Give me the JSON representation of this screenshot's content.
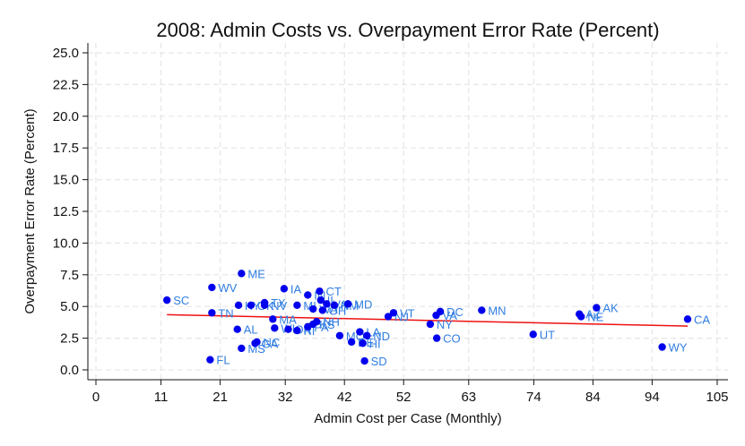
{
  "chart_data": {
    "type": "scatter",
    "title": "2008: Admin Costs vs. Overpayment Error Rate (Percent)",
    "xlabel": "Admin Cost per Case (Monthly)",
    "ylabel": "Overpayment Error Rate (Percent)",
    "xlim": [
      0,
      105
    ],
    "ylim": [
      0,
      25
    ],
    "x_ticks": [
      "0",
      "11",
      "21",
      "32",
      "42",
      "52",
      "63",
      "74",
      "84",
      "94",
      "105"
    ],
    "y_ticks": [
      "0.0",
      "2.5",
      "5.0",
      "7.5",
      "10.0",
      "12.5",
      "15.0",
      "17.5",
      "20.0",
      "22.5",
      "25.0"
    ],
    "grid": true,
    "colors": {
      "points": "#0000ee",
      "labels": "#2f7de1",
      "fit_line": "#ee1111",
      "grid": "#e6e6e6"
    },
    "fit_line": {
      "x": [
        12.0,
        100.0
      ],
      "y": [
        4.35,
        3.45
      ]
    },
    "points": [
      {
        "label": "SC",
        "x": 12.0,
        "y": 5.5
      },
      {
        "label": "FL",
        "x": 19.3,
        "y": 0.8
      },
      {
        "label": "WV",
        "x": 19.6,
        "y": 6.5
      },
      {
        "label": "TN",
        "x": 19.6,
        "y": 4.5
      },
      {
        "label": "AL",
        "x": 23.9,
        "y": 3.2
      },
      {
        "label": "ME",
        "x": 24.6,
        "y": 7.6
      },
      {
        "label": "MS",
        "x": 24.6,
        "y": 1.7
      },
      {
        "label": "KY",
        "x": 24.1,
        "y": 5.1
      },
      {
        "label": "GA",
        "x": 26.9,
        "y": 2.1
      },
      {
        "label": "NC",
        "x": 27.2,
        "y": 2.2
      },
      {
        "label": "OK",
        "x": 26.2,
        "y": 5.1
      },
      {
        "label": "TX",
        "x": 28.5,
        "y": 5.3
      },
      {
        "label": "NV",
        "x": 28.5,
        "y": 5.1
      },
      {
        "label": "MA",
        "x": 29.9,
        "y": 4.0
      },
      {
        "label": "WI",
        "x": 30.2,
        "y": 3.3
      },
      {
        "label": "OR",
        "x": 32.5,
        "y": 3.2
      },
      {
        "label": "IA",
        "x": 31.8,
        "y": 6.4
      },
      {
        "label": "MI",
        "x": 34.0,
        "y": 5.1
      },
      {
        "label": "RI",
        "x": 34.0,
        "y": 3.1
      },
      {
        "label": "IN",
        "x": 35.8,
        "y": 5.9
      },
      {
        "label": "PA",
        "x": 35.8,
        "y": 3.4
      },
      {
        "label": "KS",
        "x": 36.7,
        "y": 3.6
      },
      {
        "label": "NH",
        "x": 37.3,
        "y": 3.8
      },
      {
        "label": "WA",
        "x": 36.7,
        "y": 4.8
      },
      {
        "label": "CT",
        "x": 37.8,
        "y": 6.2
      },
      {
        "label": "IL",
        "x": 38.0,
        "y": 5.5
      },
      {
        "label": "OH",
        "x": 38.3,
        "y": 4.7
      },
      {
        "label": "VA",
        "x": 39.0,
        "y": 5.2
      },
      {
        "label": "NM",
        "x": 40.3,
        "y": 5.1
      },
      {
        "label": "MO",
        "x": 41.2,
        "y": 2.7
      },
      {
        "label": "MD",
        "x": 42.6,
        "y": 5.2
      },
      {
        "label": "DE",
        "x": 43.2,
        "y": 2.2
      },
      {
        "label": "LA",
        "x": 44.6,
        "y": 3.0
      },
      {
        "label": "HI",
        "x": 45.1,
        "y": 2.1
      },
      {
        "label": "ND",
        "x": 45.8,
        "y": 2.7
      },
      {
        "label": "SD",
        "x": 45.4,
        "y": 0.7
      },
      {
        "label": "NJ",
        "x": 49.4,
        "y": 4.2
      },
      {
        "label": "VT",
        "x": 50.3,
        "y": 4.5
      },
      {
        "label": "NY",
        "x": 56.5,
        "y": 3.6
      },
      {
        "label": "CO",
        "x": 57.6,
        "y": 2.5
      },
      {
        "label": "VA",
        "x": 57.5,
        "y": 4.3
      },
      {
        "label": "DC",
        "x": 58.2,
        "y": 4.6
      },
      {
        "label": "MN",
        "x": 65.2,
        "y": 4.7
      },
      {
        "label": "UT",
        "x": 73.9,
        "y": 2.8
      },
      {
        "label": "AZ",
        "x": 81.7,
        "y": 4.4
      },
      {
        "label": "NE",
        "x": 82.0,
        "y": 4.2
      },
      {
        "label": "AK",
        "x": 84.6,
        "y": 4.9
      },
      {
        "label": "WY",
        "x": 95.7,
        "y": 1.8
      },
      {
        "label": "CA",
        "x": 100.0,
        "y": 4.0
      }
    ]
  }
}
